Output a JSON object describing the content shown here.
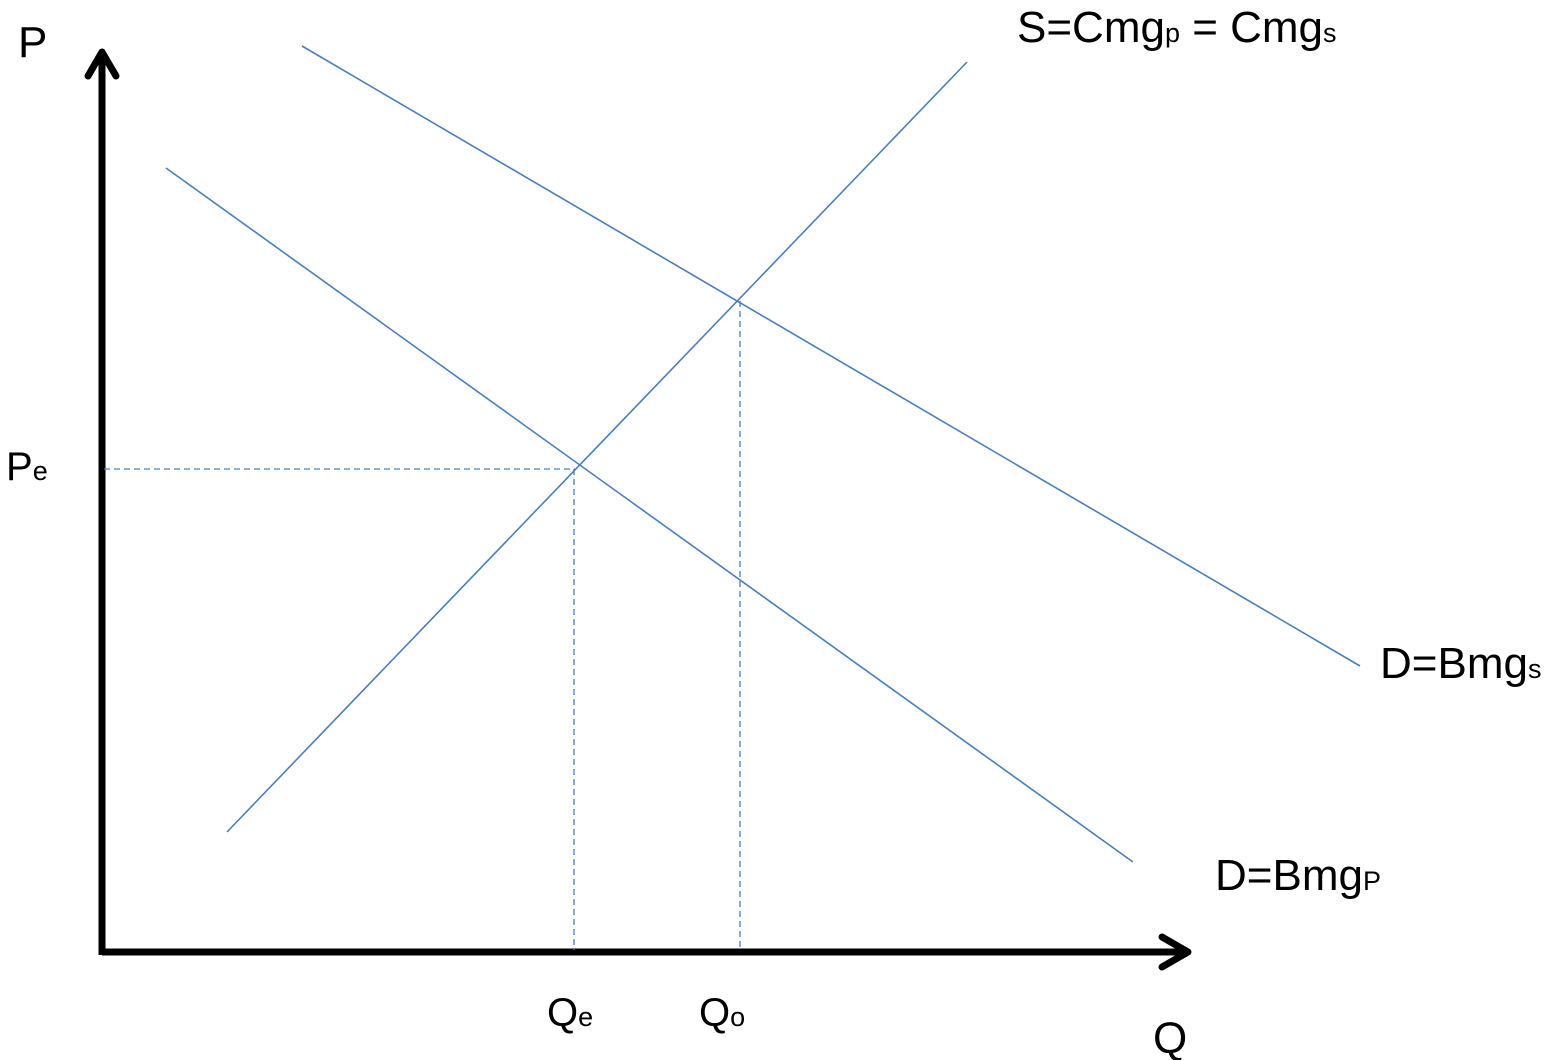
{
  "axes": {
    "y_label": "P",
    "x_label": "Q"
  },
  "curves": {
    "supply": {
      "main": "S=Cmg",
      "sub1": "p",
      "middle": " = Cmg",
      "sub2": "s"
    },
    "social_demand": {
      "main": "D=Bmg",
      "sub": "s"
    },
    "private_demand": {
      "main": "D=Bmg",
      "sub": "P"
    }
  },
  "markers": {
    "price_equilibrium": {
      "main": "P",
      "sub": "e"
    },
    "quantity_equilibrium": {
      "main": "Q",
      "sub": "e"
    },
    "quantity_optimal": {
      "main": "Q",
      "sub": "o"
    }
  },
  "colors": {
    "curve": "#4a7ebb",
    "axis": "#000000"
  }
}
